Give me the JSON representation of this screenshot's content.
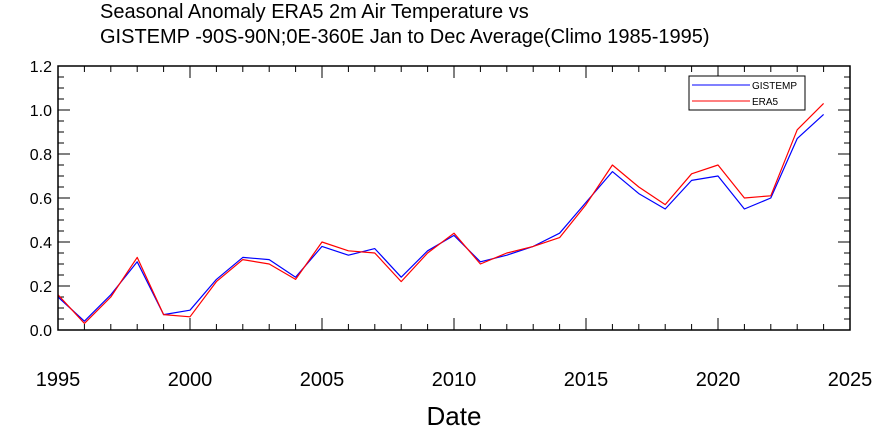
{
  "chart_data": {
    "type": "line",
    "title_lines": [
      "Seasonal Anomaly ERA5   2m Air Temperature  vs",
      "GISTEMP  -90S-90N;0E-360E Jan to Dec Average(Climo 1985-1995)"
    ],
    "xlabel": "Date",
    "ylabel": "",
    "xlim": [
      1995,
      2025
    ],
    "ylim": [
      0.0,
      1.2
    ],
    "xticks": [
      1995,
      2000,
      2005,
      2010,
      2015,
      2020,
      2025
    ],
    "yticks": [
      "0.0",
      "0.2",
      "0.4",
      "0.6",
      "0.8",
      "1.0",
      "1.2"
    ],
    "x": [
      1995,
      1996,
      1997,
      1998,
      1999,
      2000,
      2001,
      2002,
      2003,
      2004,
      2005,
      2006,
      2007,
      2008,
      2009,
      2010,
      2011,
      2012,
      2013,
      2014,
      2015,
      2016,
      2017,
      2018,
      2019,
      2020,
      2021,
      2022,
      2023,
      2024
    ],
    "series": [
      {
        "name": "GISTEMP",
        "color": "#0000ff",
        "values": [
          0.15,
          0.04,
          0.16,
          0.31,
          0.07,
          0.09,
          0.23,
          0.33,
          0.32,
          0.24,
          0.38,
          0.34,
          0.37,
          0.24,
          0.36,
          0.43,
          0.31,
          0.34,
          0.38,
          0.44,
          0.58,
          0.72,
          0.62,
          0.55,
          0.68,
          0.7,
          0.55,
          0.6,
          0.87,
          0.98
        ]
      },
      {
        "name": "ERA5",
        "color": "#ff0000",
        "values": [
          0.16,
          0.03,
          0.15,
          0.33,
          0.07,
          0.06,
          0.22,
          0.32,
          0.3,
          0.23,
          0.4,
          0.36,
          0.35,
          0.22,
          0.35,
          0.44,
          0.3,
          0.35,
          0.38,
          0.42,
          0.57,
          0.75,
          0.65,
          0.57,
          0.71,
          0.75,
          0.6,
          0.61,
          0.91,
          1.03
        ]
      }
    ],
    "legend": {
      "position": "top-right",
      "entries": [
        "GISTEMP",
        "ERA5"
      ]
    }
  }
}
